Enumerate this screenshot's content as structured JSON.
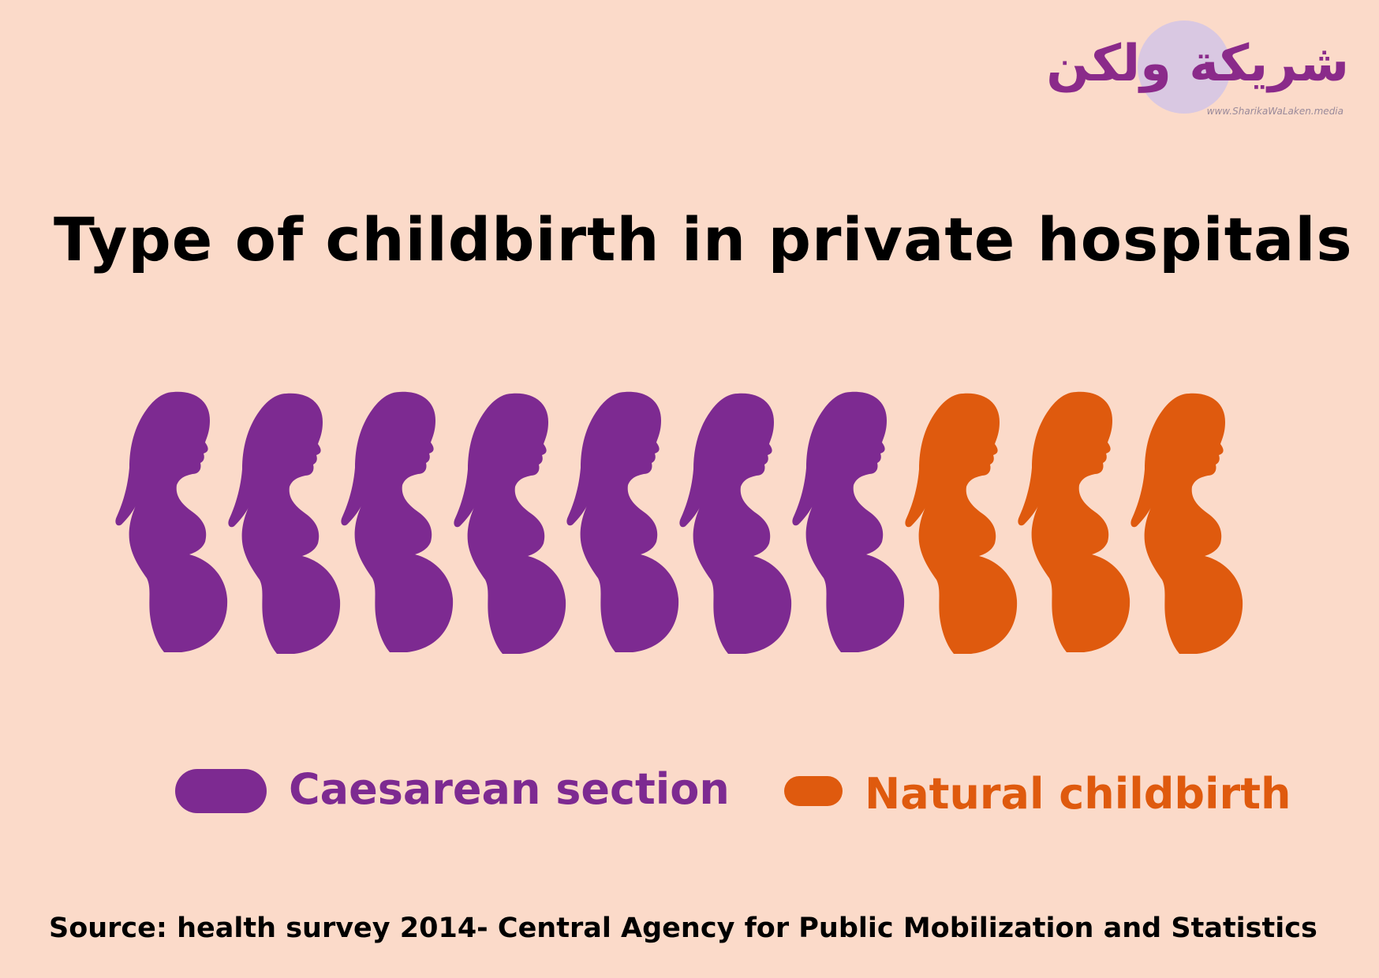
{
  "logo": {
    "text_ar": "شريكة ولكن",
    "url": "www.SharikaWaLaken.media"
  },
  "title": "Type of childbirth in private hospitals",
  "chart_data": {
    "type": "pictogram",
    "title": "Type of childbirth in private hospitals",
    "total_icons": 10,
    "series": [
      {
        "name": "Caesarean section",
        "icons": 7,
        "color": "#7d2a91"
      },
      {
        "name": "Natural childbirth",
        "icons": 3,
        "color": "#df5a0e"
      }
    ],
    "icon": "pregnant-woman-silhouette-icon"
  },
  "legend": {
    "caesarean": {
      "label": "Caesarean section",
      "color": "#7d2a91"
    },
    "natural": {
      "label": "Natural childbirth",
      "color": "#df5a0e"
    }
  },
  "source": "Source: health survey 2014- Central Agency for Public Mobilization and Statistics"
}
